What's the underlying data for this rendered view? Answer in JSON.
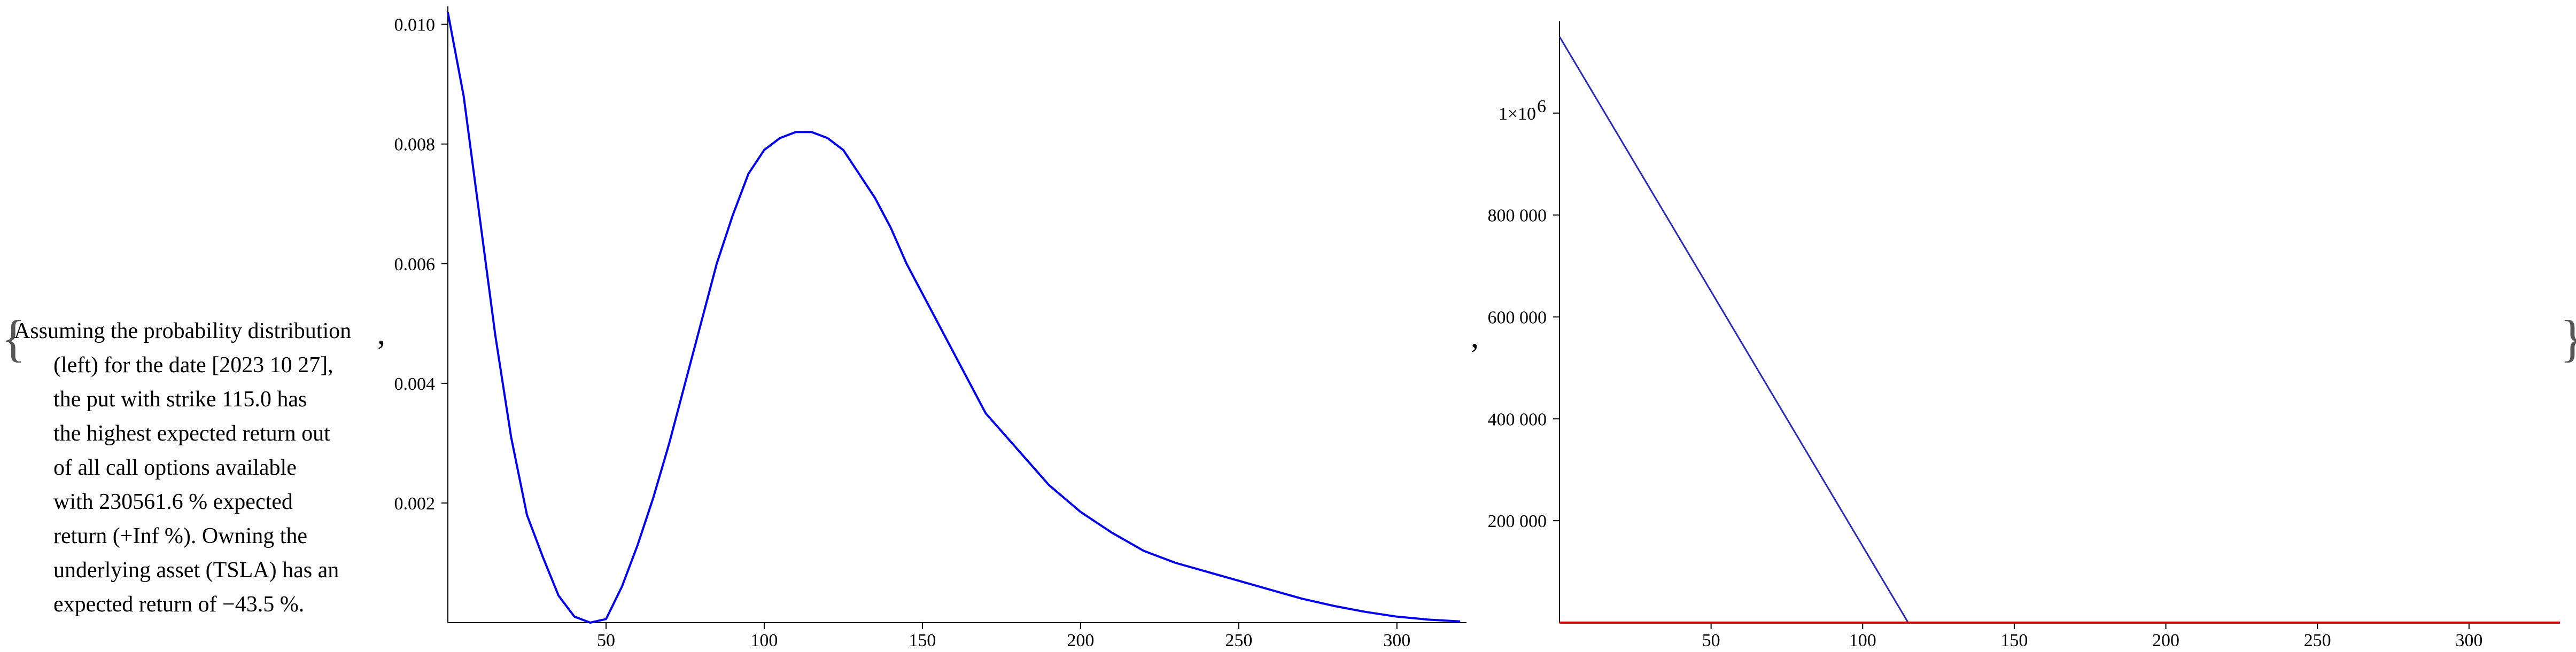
{
  "open_brace": "{",
  "close_brace": "}",
  "separator_1": ",",
  "separator_2": ",",
  "note": {
    "lines": [
      "Assuming the probability distribution",
      "(left) for the date [2023 10 27],",
      "the put with strike 115.0 has",
      "the highest expected return out",
      "of all call options available",
      "with 230561.6 % expected",
      "return (+Inf %). Owning the",
      "underlying asset (TSLA) has an",
      "expected return of −43.5 %."
    ]
  },
  "colors": {
    "density": "#0000ee",
    "payoff": "#2a2ab8",
    "zero_line": "#cc0000",
    "axis": "#000000"
  },
  "chart_data": [
    {
      "type": "line",
      "title": "",
      "xlabel": "",
      "ylabel": "",
      "xlim": [
        0,
        322
      ],
      "ylim": [
        0,
        0.0103
      ],
      "x_ticks": [
        50,
        100,
        150,
        200,
        250,
        300
      ],
      "x_tick_labels": [
        "50",
        "100",
        "150",
        "200",
        "250",
        "300"
      ],
      "y_ticks": [
        0.002,
        0.004,
        0.006,
        0.008,
        0.01
      ],
      "y_tick_labels": [
        "0.002",
        "0.004",
        "0.006",
        "0.008",
        "0.010"
      ],
      "series": [
        {
          "x": [
            0,
            5,
            10,
            15,
            20,
            25,
            30,
            35,
            40,
            45,
            50,
            55,
            60,
            65,
            70,
            75,
            80,
            85,
            90,
            95,
            100,
            105,
            110,
            115,
            120,
            125,
            130,
            135,
            140,
            145,
            150,
            155,
            160,
            165,
            170,
            180,
            190,
            200,
            210,
            220,
            230,
            240,
            250,
            260,
            270,
            280,
            290,
            300,
            310,
            320
          ],
          "y": [
            0.0102,
            0.0088,
            0.0068,
            0.0048,
            0.0031,
            0.0018,
            0.0011,
            0.00045,
            0.0001,
            0.0,
            6e-05,
            0.0006,
            0.0013,
            0.0021,
            0.003,
            0.004,
            0.005,
            0.006,
            0.0068,
            0.0075,
            0.0079,
            0.0081,
            0.0082,
            0.0082,
            0.0081,
            0.0079,
            0.0075,
            0.0071,
            0.0066,
            0.006,
            0.0055,
            0.005,
            0.0045,
            0.004,
            0.0035,
            0.0029,
            0.0023,
            0.00185,
            0.0015,
            0.0012,
            0.001,
            0.00085,
            0.0007,
            0.00055,
            0.0004,
            0.00028,
            0.00018,
            0.0001,
            5e-05,
            2e-05
          ]
        }
      ]
    },
    {
      "type": "line",
      "title": "",
      "xlabel": "",
      "ylabel": "",
      "xlim": [
        0,
        330
      ],
      "ylim": [
        0,
        1180000
      ],
      "x_ticks": [
        50,
        100,
        150,
        200,
        250,
        300
      ],
      "x_tick_labels": [
        "50",
        "100",
        "150",
        "200",
        "250",
        "300"
      ],
      "y_ticks": [
        200000,
        400000,
        600000,
        800000,
        1000000
      ],
      "y_tick_labels": [
        "200 000",
        "400 000",
        "600 000",
        "800 000",
        "1×10"
      ],
      "y_tick_superscript": "6",
      "series": [
        {
          "x": [
            0,
            115,
            330
          ],
          "y": [
            1150000,
            0,
            0
          ]
        },
        {
          "x": [
            0,
            330
          ],
          "y": [
            0,
            0
          ]
        }
      ]
    }
  ]
}
